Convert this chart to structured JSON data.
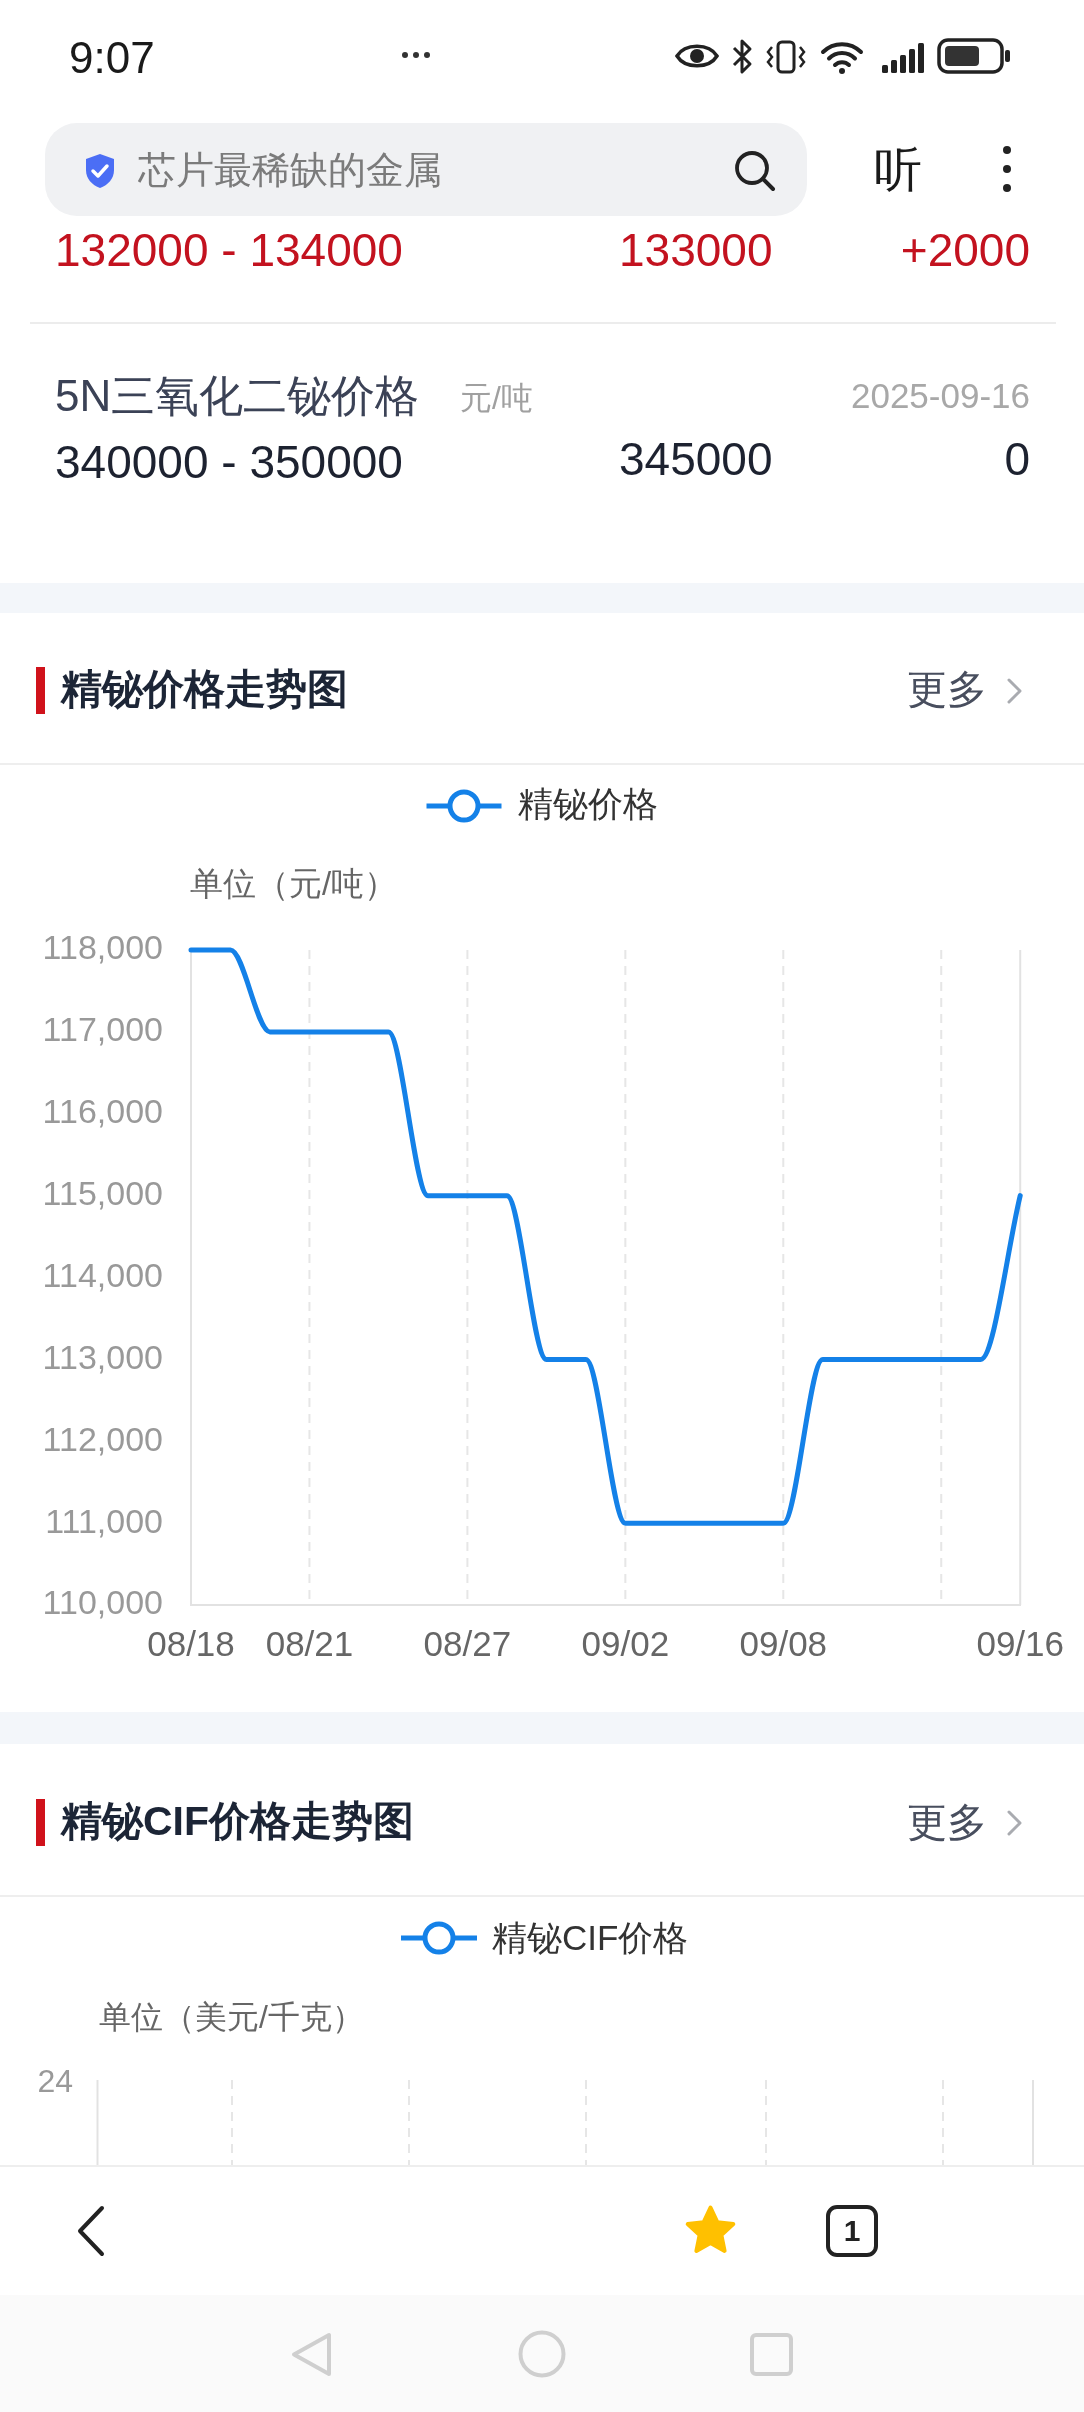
{
  "chart_data": [
    {
      "type": "line",
      "title": "精铋价格走势图",
      "ylabel": "单位（元/吨）",
      "categories": [
        "08/18",
        null,
        null,
        "08/21",
        null,
        null,
        null,
        "08/27",
        null,
        null,
        null,
        "09/02",
        null,
        null,
        null,
        "09/08",
        null,
        null,
        null,
        null,
        null,
        "09/16"
      ],
      "series": [
        {
          "name": "精铋价格",
          "color": "#1481e8",
          "values": [
            118000,
            118000,
            117000,
            117000,
            117000,
            117000,
            115000,
            115000,
            115000,
            113000,
            113000,
            111000,
            111000,
            111000,
            111000,
            111000,
            113000,
            113000,
            113000,
            113000,
            113000,
            115000
          ]
        }
      ],
      "ylim": [
        110000,
        118000
      ],
      "yticks": [
        {
          "value": 110000,
          "label": "110,000"
        },
        {
          "value": 111000,
          "label": "111,000"
        },
        {
          "value": 112000,
          "label": "112,000"
        },
        {
          "value": 113000,
          "label": "113,000"
        },
        {
          "value": 114000,
          "label": "114,000"
        },
        {
          "value": 115000,
          "label": "115,000"
        },
        {
          "value": 116000,
          "label": "116,000"
        },
        {
          "value": 117000,
          "label": "117,000"
        },
        {
          "value": 118000,
          "label": "118,000"
        }
      ],
      "grid": "x",
      "legend": "top",
      "annotations": [
        "9:07",
        "芯片最稀缺的金属",
        "听",
        "132000 - 134000",
        "133000",
        "+2000",
        "5N三氧化二铋价格",
        "元/吨",
        "2025-09-16",
        "340000 - 350000",
        "345000",
        "0",
        "更多"
      ]
    },
    {
      "type": "other",
      "title": "精铋CIF价格走势图",
      "annotations": [
        "更多",
        "精铋CIF价格",
        "单位（美元/千克）",
        "24",
        "1"
      ]
    }
  ]
}
